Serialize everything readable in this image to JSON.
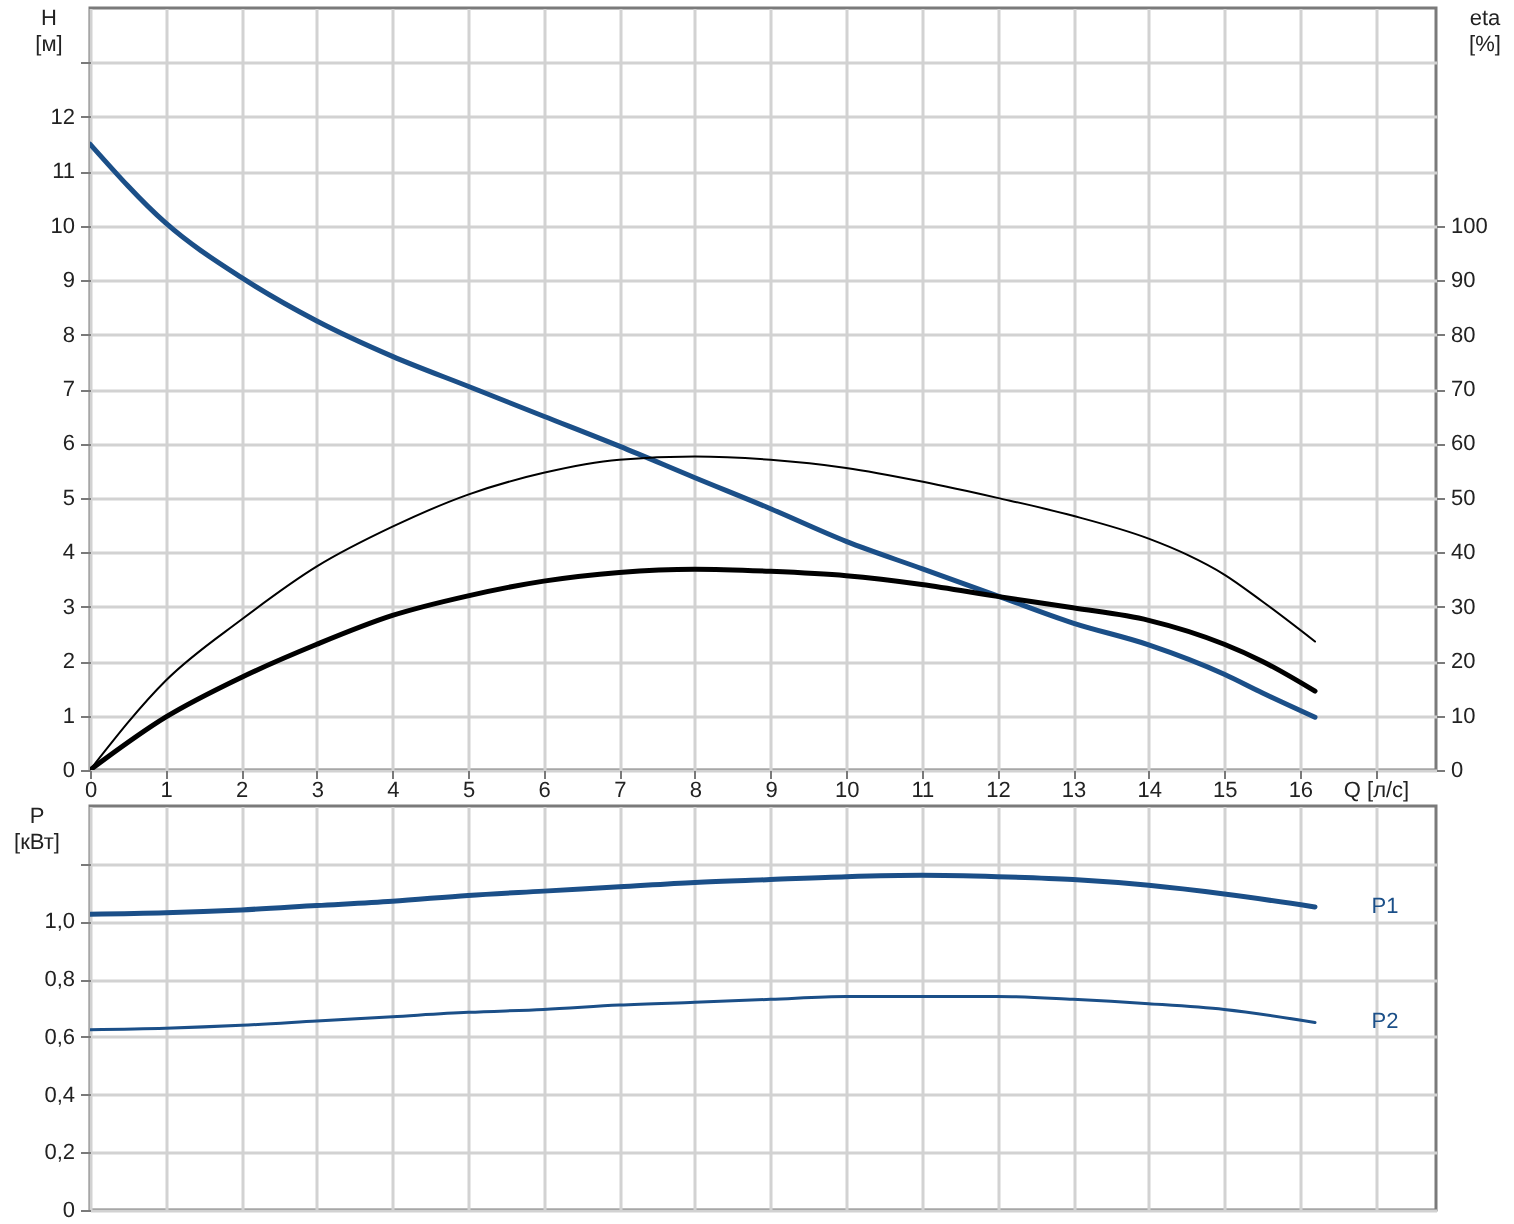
{
  "chart_data": [
    {
      "type": "line",
      "xlabel": "Q [л/с]",
      "ylabel": "H [м]",
      "y2label": "eta [%]",
      "x": [
        0,
        1,
        2,
        3,
        4,
        5,
        6,
        7,
        8,
        9,
        10,
        11,
        12,
        13,
        14,
        15,
        15.5,
        16.2
      ],
      "xlim": [
        0,
        17.8
      ],
      "xticks": [
        0,
        1,
        2,
        3,
        4,
        5,
        6,
        7,
        8,
        9,
        10,
        11,
        12,
        13,
        14,
        15,
        16,
        {
          "value": 17,
          "label": null
        }
      ],
      "ylim": [
        0,
        14
      ],
      "yticks": [
        0,
        1,
        2,
        3,
        4,
        5,
        6,
        7,
        8,
        9,
        10,
        11,
        12,
        {
          "value": 13,
          "label": null
        }
      ],
      "y2lim": [
        0,
        140
      ],
      "y2ticks": [
        0,
        10,
        20,
        30,
        40,
        50,
        60,
        70,
        80,
        90,
        100
      ],
      "grid": true,
      "series": [
        {
          "color": "#1b4f88",
          "values": [
            11.5,
            10.05,
            9.05,
            8.25,
            7.6,
            7.05,
            6.5,
            5.95,
            5.37,
            4.8,
            4.2,
            3.7,
            3.2,
            2.7,
            2.3,
            1.76,
            1.42,
            0.97
          ]
        },
        {
          "color": "#000000",
          "axis": "y2",
          "x": [
            0,
            1,
            2,
            3,
            4,
            5,
            6,
            7,
            8,
            9,
            10,
            11,
            12,
            13,
            14,
            14.5,
            15,
            15.5,
            16.2
          ],
          "values": [
            0,
            16.4,
            27.6,
            37.4,
            44.7,
            50.6,
            54.6,
            57.0,
            57.6,
            57.0,
            55.5,
            53.0,
            50.0,
            46.7,
            42.5,
            39.6,
            35.9,
            31.0,
            23.6
          ]
        },
        {
          "color": "#000000",
          "axis": "y2",
          "values": [
            0,
            9.7,
            17.0,
            23.1,
            28.4,
            32.0,
            34.7,
            36.3,
            36.9,
            36.5,
            35.7,
            34.1,
            31.9,
            29.8,
            27.5,
            23.1,
            20.0,
            14.5
          ]
        }
      ]
    },
    {
      "type": "line",
      "ylabel": "P [кВт]",
      "x": [
        0,
        1,
        2,
        3,
        4,
        5,
        6,
        7,
        8,
        9,
        10,
        11,
        12,
        13,
        14,
        15,
        16.2
      ],
      "xlim": [
        0,
        17.8
      ],
      "xticks": [
        0,
        1,
        2,
        3,
        4,
        5,
        6,
        7,
        8,
        9,
        10,
        11,
        12,
        13,
        14,
        15,
        16,
        {
          "value": 17,
          "label": null
        }
      ],
      "ylim": [
        0,
        1.4
      ],
      "yticks": [
        0,
        {
          "value": 0.2,
          "label": "0,2"
        },
        {
          "value": 0.4,
          "label": "0,4"
        },
        {
          "value": 0.6,
          "label": "0,6"
        },
        {
          "value": 0.8,
          "label": "0,8"
        },
        {
          "value": 1.0,
          "label": "1,0"
        },
        {
          "value": 1.2,
          "label": null
        }
      ],
      "tick_labels": "y",
      "grid": true,
      "series": [
        {
          "name": "P1",
          "color": "#1b4f88",
          "values": [
            1.025,
            1.03,
            1.04,
            1.055,
            1.07,
            1.09,
            1.105,
            1.12,
            1.135,
            1.145,
            1.155,
            1.16,
            1.155,
            1.145,
            1.125,
            1.095,
            1.05
          ]
        },
        {
          "name": "P2",
          "color": "#1b4f88",
          "values": [
            0.625,
            0.63,
            0.64,
            0.655,
            0.67,
            0.685,
            0.695,
            0.71,
            0.72,
            0.73,
            0.74,
            0.74,
            0.74,
            0.73,
            0.715,
            0.695,
            0.65
          ]
        }
      ]
    }
  ]
}
